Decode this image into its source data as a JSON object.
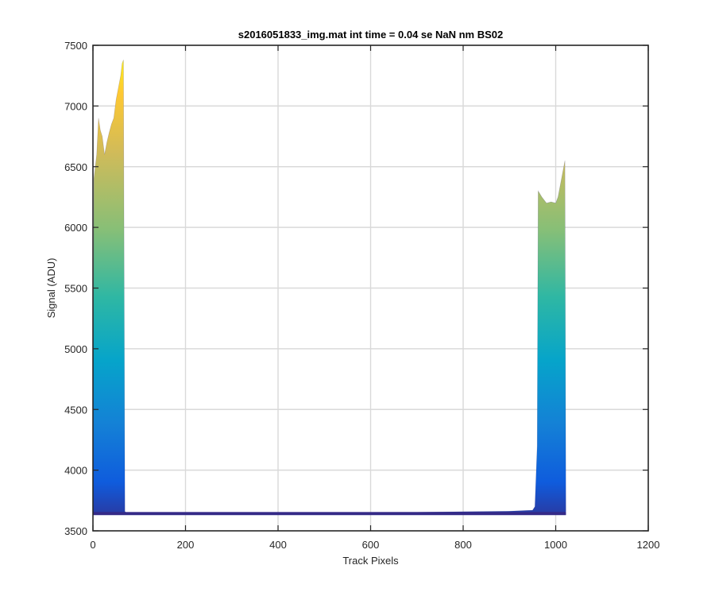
{
  "chart_data": {
    "type": "area",
    "title": "s2016051833_img.mat int time = 0.04 se  NaN nm BS02",
    "xlabel": "Track Pixels",
    "ylabel": "Signal (ADU)",
    "xlim": [
      0,
      1200
    ],
    "ylim": [
      3500,
      7500
    ],
    "xticks": [
      0,
      200,
      400,
      600,
      800,
      1000,
      1200
    ],
    "yticks": [
      3500,
      4000,
      4500,
      5000,
      5500,
      6000,
      6500,
      7000,
      7500
    ],
    "grid": true,
    "baseline": 3630,
    "series": [
      {
        "x": [
          0,
          2,
          5,
          8,
          12,
          16,
          20,
          25,
          30,
          35,
          40,
          45,
          50,
          55,
          60,
          63,
          66,
          69,
          72,
          75,
          100,
          200,
          300,
          400,
          500,
          600,
          700,
          800,
          900,
          950,
          955,
          960,
          962,
          970,
          980,
          990,
          1000,
          1005,
          1010,
          1015,
          1020,
          1022,
          1025,
          1100,
          1200
        ],
        "values": [
          4000,
          6400,
          6500,
          6600,
          6900,
          6800,
          6750,
          6600,
          6700,
          6780,
          6850,
          6900,
          7050,
          7150,
          7250,
          7350,
          7380,
          3660,
          3650,
          3650,
          3648,
          3650,
          3648,
          3650,
          3652,
          3652,
          3654,
          3658,
          3662,
          3670,
          3700,
          4200,
          6300,
          6250,
          6200,
          6210,
          6200,
          6250,
          6350,
          6450,
          6550,
          3660,
          null,
          null,
          null
        ]
      }
    ],
    "colormap": [
      "#352a87",
      "#0f5cdd",
      "#1481d6",
      "#06a4ca",
      "#2eb7a4",
      "#87bf77",
      "#d1bb59",
      "#fec832",
      "#f9fb0e"
    ]
  }
}
